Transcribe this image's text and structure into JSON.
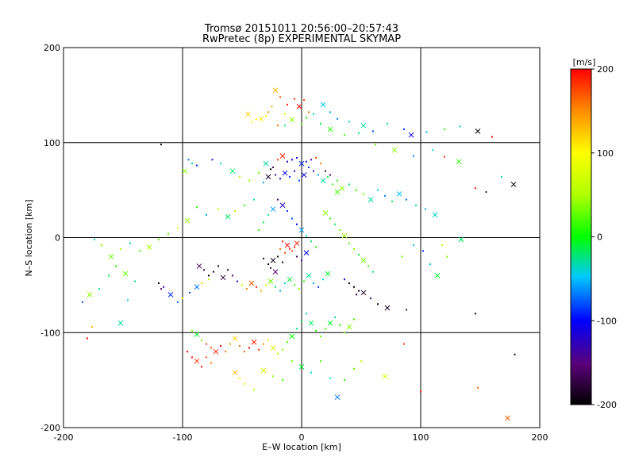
{
  "chart_data": {
    "type": "scatter",
    "title": "Tromsø 20151011 20:56:00–20:57:43",
    "subtitle": "RwPretec (8p) EXPERIMENTAL SKYMAP",
    "xlabel": "E–W location [km]",
    "ylabel": "N–S location [km]",
    "xlim": [
      -200,
      200
    ],
    "ylim": [
      -200,
      200
    ],
    "xticks": [
      -200,
      -100,
      0,
      100,
      200
    ],
    "yticks": [
      -200,
      -100,
      0,
      100,
      200
    ],
    "grid": true,
    "colorbar": {
      "title": "[m/s]",
      "range": [
        -200,
        200
      ],
      "ticks": [
        200,
        100,
        0,
        -100,
        -200
      ]
    },
    "marker_legend": {
      "dot": "small dot markers",
      "cross": "x markers"
    },
    "points": [
      [
        -22,
        155,
        130
      ],
      [
        -18,
        148,
        170
      ],
      [
        -12,
        140,
        190
      ],
      [
        -6,
        146,
        180
      ],
      [
        -2,
        138,
        200
      ],
      [
        2,
        145,
        175
      ],
      [
        6,
        132,
        160
      ],
      [
        -28,
        132,
        150
      ],
      [
        -34,
        125,
        110
      ],
      [
        -30,
        128,
        95
      ],
      [
        -25,
        138,
        140
      ],
      [
        -14,
        130,
        70
      ],
      [
        -8,
        124,
        40
      ],
      [
        0,
        120,
        20
      ],
      [
        4,
        126,
        0
      ],
      [
        10,
        130,
        -30
      ],
      [
        18,
        140,
        -50
      ],
      [
        24,
        132,
        -60
      ],
      [
        30,
        125,
        -70
      ],
      [
        40,
        122,
        -40
      ],
      [
        52,
        118,
        -30
      ],
      [
        60,
        112,
        -80
      ],
      [
        72,
        120,
        -20
      ],
      [
        86,
        114,
        -90
      ],
      [
        92,
        108,
        -100
      ],
      [
        105,
        111,
        -60
      ],
      [
        120,
        114,
        10
      ],
      [
        133,
        117,
        -40
      ],
      [
        148,
        112,
        -200
      ],
      [
        160,
        106,
        200
      ],
      [
        -38,
        125,
        100
      ],
      [
        -42,
        122,
        90
      ],
      [
        -45,
        130,
        120
      ],
      [
        -20,
        118,
        160
      ],
      [
        -14,
        118,
        -20
      ],
      [
        16,
        120,
        -10
      ],
      [
        24,
        114,
        10
      ],
      [
        36,
        108,
        20
      ],
      [
        48,
        110,
        -20
      ],
      [
        62,
        98,
        30
      ],
      [
        78,
        92,
        40
      ],
      [
        94,
        86,
        -70
      ],
      [
        110,
        92,
        -40
      ],
      [
        120,
        85,
        180
      ],
      [
        132,
        80,
        10
      ],
      [
        146,
        52,
        190
      ],
      [
        155,
        48,
        -150
      ],
      [
        168,
        64,
        -30
      ],
      [
        178,
        56,
        -200
      ],
      [
        -118,
        98,
        -200
      ],
      [
        -95,
        82,
        -70
      ],
      [
        -92,
        78,
        -30
      ],
      [
        -98,
        70,
        40
      ],
      [
        -88,
        76,
        -90
      ],
      [
        -75,
        82,
        -110
      ],
      [
        -68,
        78,
        -40
      ],
      [
        -58,
        70,
        -20
      ],
      [
        -52,
        64,
        60
      ],
      [
        -44,
        60,
        40
      ],
      [
        -36,
        68,
        30
      ],
      [
        -30,
        78,
        -30
      ],
      [
        -26,
        72,
        -200
      ],
      [
        -22,
        66,
        -130
      ],
      [
        -18,
        62,
        -110
      ],
      [
        -14,
        68,
        -100
      ],
      [
        -10,
        64,
        -90
      ],
      [
        -6,
        70,
        -120
      ],
      [
        -2,
        60,
        -80
      ],
      [
        2,
        66,
        -110
      ],
      [
        6,
        74,
        -90
      ],
      [
        10,
        70,
        -130
      ],
      [
        14,
        66,
        -60
      ],
      [
        18,
        60,
        -30
      ],
      [
        22,
        64,
        -10
      ],
      [
        26,
        56,
        20
      ],
      [
        30,
        60,
        10
      ],
      [
        34,
        52,
        40
      ],
      [
        40,
        56,
        -20
      ],
      [
        46,
        50,
        10
      ],
      [
        52,
        46,
        30
      ],
      [
        58,
        40,
        -30
      ],
      [
        64,
        50,
        -50
      ],
      [
        70,
        44,
        -70
      ],
      [
        76,
        38,
        -20
      ],
      [
        82,
        46,
        -50
      ],
      [
        88,
        40,
        -70
      ],
      [
        96,
        34,
        -30
      ],
      [
        104,
        30,
        -60
      ],
      [
        112,
        24,
        -40
      ],
      [
        -12,
        80,
        -110
      ],
      [
        -8,
        82,
        -100
      ],
      [
        -4,
        84,
        -120
      ],
      [
        0,
        78,
        -90
      ],
      [
        4,
        80,
        -110
      ],
      [
        8,
        82,
        -140
      ],
      [
        -20,
        82,
        180
      ],
      [
        -16,
        86,
        190
      ],
      [
        12,
        84,
        170
      ],
      [
        16,
        78,
        150
      ],
      [
        -24,
        74,
        -170
      ],
      [
        -28,
        64,
        -180
      ],
      [
        20,
        70,
        -170
      ],
      [
        24,
        66,
        -150
      ],
      [
        -32,
        58,
        -60
      ],
      [
        30,
        48,
        20
      ],
      [
        -40,
        40,
        -40
      ],
      [
        -48,
        34,
        10
      ],
      [
        -56,
        28,
        50
      ],
      [
        -62,
        22,
        -20
      ],
      [
        -70,
        30,
        60
      ],
      [
        -80,
        24,
        -60
      ],
      [
        -88,
        32,
        10
      ],
      [
        -96,
        18,
        40
      ],
      [
        -104,
        10,
        70
      ],
      [
        -112,
        4,
        20
      ],
      [
        -120,
        -2,
        30
      ],
      [
        -128,
        -10,
        50
      ],
      [
        -136,
        -14,
        20
      ],
      [
        -144,
        -6,
        -30
      ],
      [
        -152,
        -12,
        50
      ],
      [
        -160,
        -20,
        30
      ],
      [
        -168,
        -8,
        40
      ],
      [
        -174,
        -2,
        -40
      ],
      [
        -20,
        40,
        -150
      ],
      [
        -16,
        34,
        -120
      ],
      [
        -12,
        28,
        -90
      ],
      [
        -8,
        20,
        -80
      ],
      [
        -4,
        14,
        -100
      ],
      [
        0,
        8,
        -60
      ],
      [
        4,
        2,
        -40
      ],
      [
        8,
        -4,
        -20
      ],
      [
        12,
        -10,
        10
      ],
      [
        -24,
        30,
        -60
      ],
      [
        -28,
        24,
        -30
      ],
      [
        -32,
        16,
        -10
      ],
      [
        -36,
        8,
        20
      ],
      [
        20,
        26,
        40
      ],
      [
        24,
        20,
        10
      ],
      [
        28,
        14,
        -20
      ],
      [
        32,
        8,
        30
      ],
      [
        36,
        2,
        50
      ],
      [
        40,
        -6,
        20
      ],
      [
        44,
        -12,
        40
      ],
      [
        48,
        -18,
        -10
      ],
      [
        52,
        -24,
        30
      ],
      [
        56,
        -30,
        20
      ],
      [
        60,
        -36,
        -30
      ],
      [
        -16,
        -4,
        190
      ],
      [
        -12,
        -8,
        200
      ],
      [
        -10,
        -12,
        185
      ],
      [
        -8,
        -14,
        170
      ],
      [
        -6,
        -10,
        200
      ],
      [
        -4,
        -6,
        190
      ],
      [
        -14,
        -16,
        175
      ],
      [
        -18,
        -12,
        160
      ],
      [
        -20,
        -20,
        -200
      ],
      [
        -24,
        -24,
        -190
      ],
      [
        -28,
        -28,
        -200
      ],
      [
        -32,
        -22,
        -180
      ],
      [
        -26,
        -32,
        -170
      ],
      [
        -22,
        -36,
        -150
      ],
      [
        -16,
        -26,
        -200
      ],
      [
        -4,
        -20,
        -160
      ],
      [
        0,
        -24,
        -130
      ],
      [
        4,
        -16,
        -100
      ],
      [
        -70,
        -30,
        -200
      ],
      [
        -74,
        -36,
        -190
      ],
      [
        -78,
        -40,
        -200
      ],
      [
        -66,
        -42,
        -180
      ],
      [
        -62,
        -34,
        -170
      ],
      [
        -58,
        -40,
        -150
      ],
      [
        -82,
        -34,
        -170
      ],
      [
        -86,
        -30,
        -160
      ],
      [
        -54,
        -46,
        -120
      ],
      [
        -50,
        -50,
        60
      ],
      [
        -46,
        -54,
        150
      ],
      [
        -42,
        -48,
        170
      ],
      [
        -38,
        -52,
        190
      ],
      [
        -34,
        -56,
        140
      ],
      [
        -30,
        -50,
        80
      ],
      [
        -26,
        -46,
        30
      ],
      [
        -22,
        -52,
        -20
      ],
      [
        -18,
        -56,
        -60
      ],
      [
        -14,
        -48,
        -40
      ],
      [
        -10,
        -44,
        -10
      ],
      [
        -6,
        -50,
        20
      ],
      [
        -2,
        -54,
        40
      ],
      [
        2,
        -46,
        10
      ],
      [
        6,
        -40,
        -30
      ],
      [
        10,
        -48,
        -60
      ],
      [
        14,
        -52,
        -90
      ],
      [
        18,
        -44,
        -40
      ],
      [
        22,
        -38,
        -10
      ],
      [
        40,
        -48,
        -200
      ],
      [
        44,
        -52,
        -200
      ],
      [
        48,
        -56,
        -190
      ],
      [
        52,
        -58,
        -180
      ],
      [
        46,
        -60,
        -170
      ],
      [
        58,
        -64,
        -160
      ],
      [
        64,
        -70,
        -200
      ],
      [
        72,
        -74,
        -190
      ],
      [
        36,
        -44,
        -120
      ],
      [
        -120,
        -48,
        -200
      ],
      [
        -116,
        -52,
        -130
      ],
      [
        -110,
        -60,
        -90
      ],
      [
        -104,
        -68,
        -70
      ],
      [
        -100,
        -64,
        90
      ],
      [
        -94,
        -58,
        -80
      ],
      [
        -88,
        -52,
        -70
      ],
      [
        -84,
        -48,
        120
      ],
      [
        -78,
        -44,
        60
      ],
      [
        -140,
        -46,
        -30
      ],
      [
        -148,
        -38,
        30
      ],
      [
        -156,
        -30,
        10
      ],
      [
        -162,
        -40,
        -10
      ],
      [
        -170,
        -54,
        -30
      ],
      [
        -178,
        -60,
        40
      ],
      [
        -184,
        -68,
        -80
      ],
      [
        -176,
        -94,
        130
      ],
      [
        -180,
        -106,
        200
      ],
      [
        -152,
        -90,
        -30
      ],
      [
        -146,
        -66,
        -50
      ],
      [
        -118,
        -54,
        -160
      ],
      [
        -92,
        -98,
        30
      ],
      [
        -88,
        -102,
        -10
      ],
      [
        -84,
        -108,
        40
      ],
      [
        -80,
        -112,
        180
      ],
      [
        -76,
        -116,
        170
      ],
      [
        -72,
        -120,
        190
      ],
      [
        -68,
        -114,
        200
      ],
      [
        -64,
        -120,
        160
      ],
      [
        -60,
        -112,
        140
      ],
      [
        -56,
        -106,
        120
      ],
      [
        -52,
        -114,
        160
      ],
      [
        -48,
        -120,
        170
      ],
      [
        -44,
        -116,
        200
      ],
      [
        -40,
        -110,
        190
      ],
      [
        -36,
        -118,
        180
      ],
      [
        -32,
        -112,
        150
      ],
      [
        -28,
        -108,
        120
      ],
      [
        -24,
        -116,
        80
      ],
      [
        -20,
        -122,
        60
      ],
      [
        -16,
        -118,
        40
      ],
      [
        -12,
        -110,
        20
      ],
      [
        -8,
        -104,
        0
      ],
      [
        -4,
        -96,
        -30
      ],
      [
        0,
        -88,
        -10
      ],
      [
        4,
        -80,
        -40
      ],
      [
        8,
        -90,
        -20
      ],
      [
        12,
        -98,
        10
      ],
      [
        16,
        -104,
        30
      ],
      [
        20,
        -96,
        20
      ],
      [
        24,
        -90,
        -10
      ],
      [
        28,
        -84,
        -30
      ],
      [
        32,
        -92,
        10
      ],
      [
        36,
        -100,
        30
      ],
      [
        40,
        -94,
        40
      ],
      [
        44,
        -86,
        20
      ],
      [
        -96,
        -120,
        200
      ],
      [
        -92,
        -126,
        190
      ],
      [
        -88,
        -130,
        180
      ],
      [
        -84,
        -136,
        200
      ],
      [
        -80,
        -126,
        170
      ],
      [
        -76,
        -132,
        160
      ],
      [
        -56,
        -142,
        130
      ],
      [
        -52,
        -148,
        100
      ],
      [
        -48,
        -154,
        80
      ],
      [
        -40,
        -160,
        50
      ],
      [
        -32,
        -140,
        70
      ],
      [
        -24,
        -146,
        40
      ],
      [
        -16,
        -150,
        10
      ],
      [
        -8,
        -130,
        30
      ],
      [
        0,
        -136,
        -10
      ],
      [
        8,
        -142,
        -40
      ],
      [
        16,
        -130,
        20
      ],
      [
        24,
        -148,
        -30
      ],
      [
        30,
        -168,
        -70
      ],
      [
        36,
        -150,
        10
      ],
      [
        44,
        -138,
        30
      ],
      [
        50,
        -130,
        60
      ],
      [
        70,
        -146,
        80
      ],
      [
        86,
        -112,
        180
      ],
      [
        100,
        -162,
        190
      ],
      [
        148,
        -158,
        160
      ],
      [
        173,
        -190,
        170
      ],
      [
        146,
        -80,
        -200
      ],
      [
        179,
        -123,
        -200
      ],
      [
        88,
        -76,
        -160
      ],
      [
        114,
        -40,
        -10
      ],
      [
        102,
        -14,
        -90
      ],
      [
        122,
        -20,
        40
      ],
      [
        118,
        -8,
        60
      ],
      [
        134,
        -2,
        -20
      ],
      [
        108,
        -28,
        -50
      ],
      [
        84,
        -20,
        30
      ],
      [
        94,
        -8,
        -40
      ]
    ]
  }
}
